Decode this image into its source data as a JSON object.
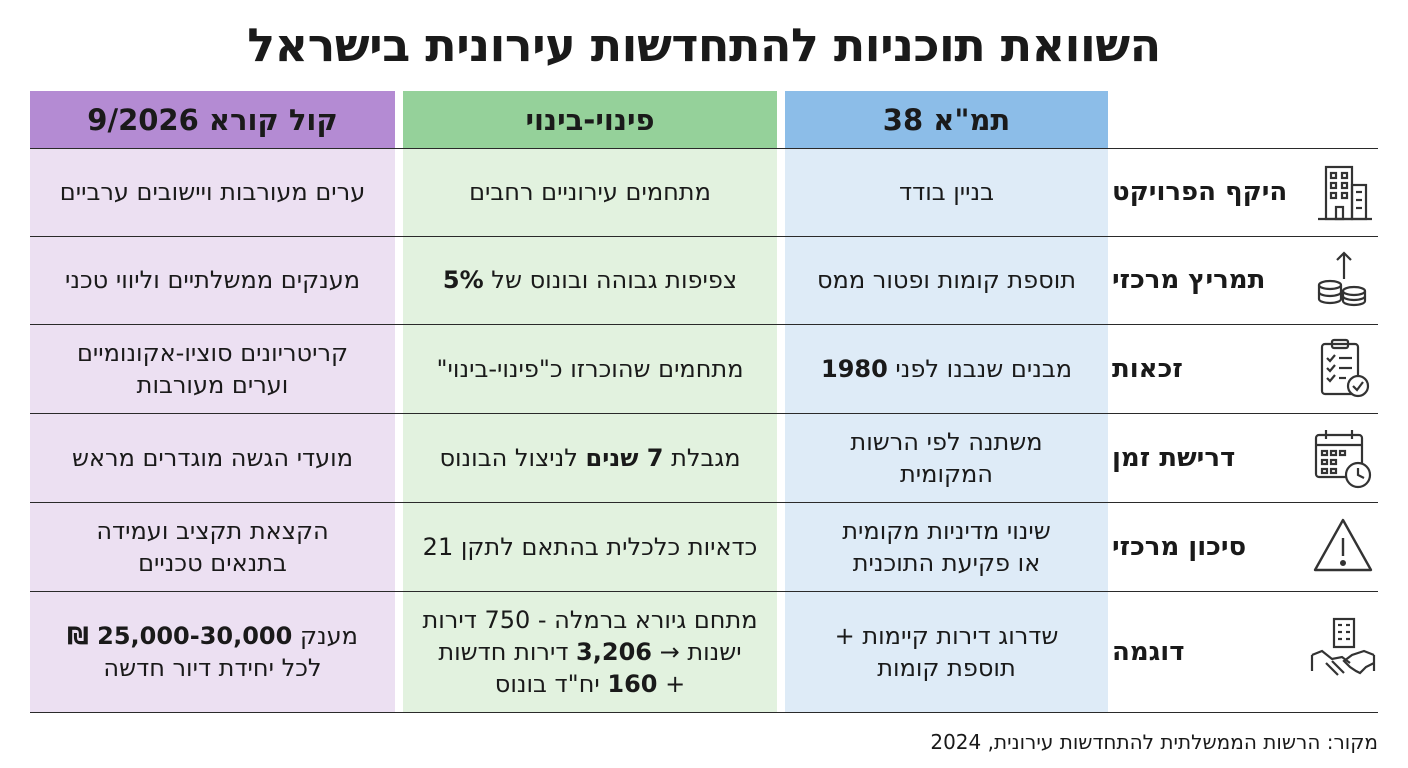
{
  "title": "השוואת תוכניות להתחדשות עירונית בישראל",
  "colors": {
    "tama_header": "#8cbde8",
    "tama_body": "#deebf7",
    "pinui_header": "#95d19a",
    "pinui_body": "#e2f2df",
    "kol_header": "#b48bd3",
    "kol_body": "#ece0f2"
  },
  "columns": {
    "tama": "תמ\"א 38",
    "pinui": "פינוי-בינוי",
    "kol": "קול קורא 9/2026"
  },
  "rows": [
    {
      "label": "היקף הפרויקט",
      "icon": "building-icon",
      "tama": "בניין בודד",
      "pinui": "מתחמים עירוניים רחבים",
      "kol": "ערים מעורבות ויישובים ערביים"
    },
    {
      "label": "תמריץ מרכזי",
      "icon": "coins-arrow-icon",
      "tama": "תוספת קומות ופטור ממס",
      "pinui_pre": "צפיפות גבוהה ובונוס של ",
      "pinui_bold": "5%",
      "kol": "מענקים ממשלתיים וליווי טכני"
    },
    {
      "label": "זכאות",
      "icon": "clipboard-check-icon",
      "tama_pre": "מבנים שנבנו לפני ",
      "tama_bold": "1980",
      "pinui": "מתחמים שהוכרזו כ\"פינוי-בינוי\"",
      "kol_line1": "קריטריונים סוציו-אקונומיים",
      "kol_line2": "וערים מעורבות"
    },
    {
      "label": "דרישת זמן",
      "icon": "calendar-clock-icon",
      "tama_line1": "משתנה לפי הרשות",
      "tama_line2": "המקומית",
      "pinui_pre": "מגבלת ",
      "pinui_bold": "7 שנים",
      "pinui_post": " לניצול הבונוס",
      "kol": "מועדי הגשה מוגדרים מראש"
    },
    {
      "label": "סיכון מרכזי",
      "icon": "warning-icon",
      "tama_line1": "שינוי מדיניות מקומית",
      "tama_line2": "או פקיעת התוכנית",
      "pinui": "כדאיות כלכלית בהתאם לתקן 21",
      "kol_line1": "הקצאת תקציב ועמידה",
      "kol_line2": "בתנאים טכניים"
    },
    {
      "label": "דוגמה",
      "icon": "handshake-building-icon",
      "tama_line1": "שדרוג דירות קיימות +",
      "tama_line2": "תוספת קומות",
      "pinui_line1": "מתחם גיורא ברמלה - 750 דירות",
      "pinui_line2_pre": "ישנות → ",
      "pinui_line2_bold": "3,206",
      "pinui_line2_post": " דירות חדשות",
      "pinui_line3_pre": "+ ",
      "pinui_line3_bold": "160",
      "pinui_line3_post": " יח\"ד בונוס",
      "kol_line1_pre": "מענק ",
      "kol_line1_bold": "25,000-30,000 ₪",
      "kol_line2": "לכל יחידת דיור חדשה"
    }
  ],
  "source": "מקור: הרשות הממשלתית להתחדשות עירונית, 2024"
}
